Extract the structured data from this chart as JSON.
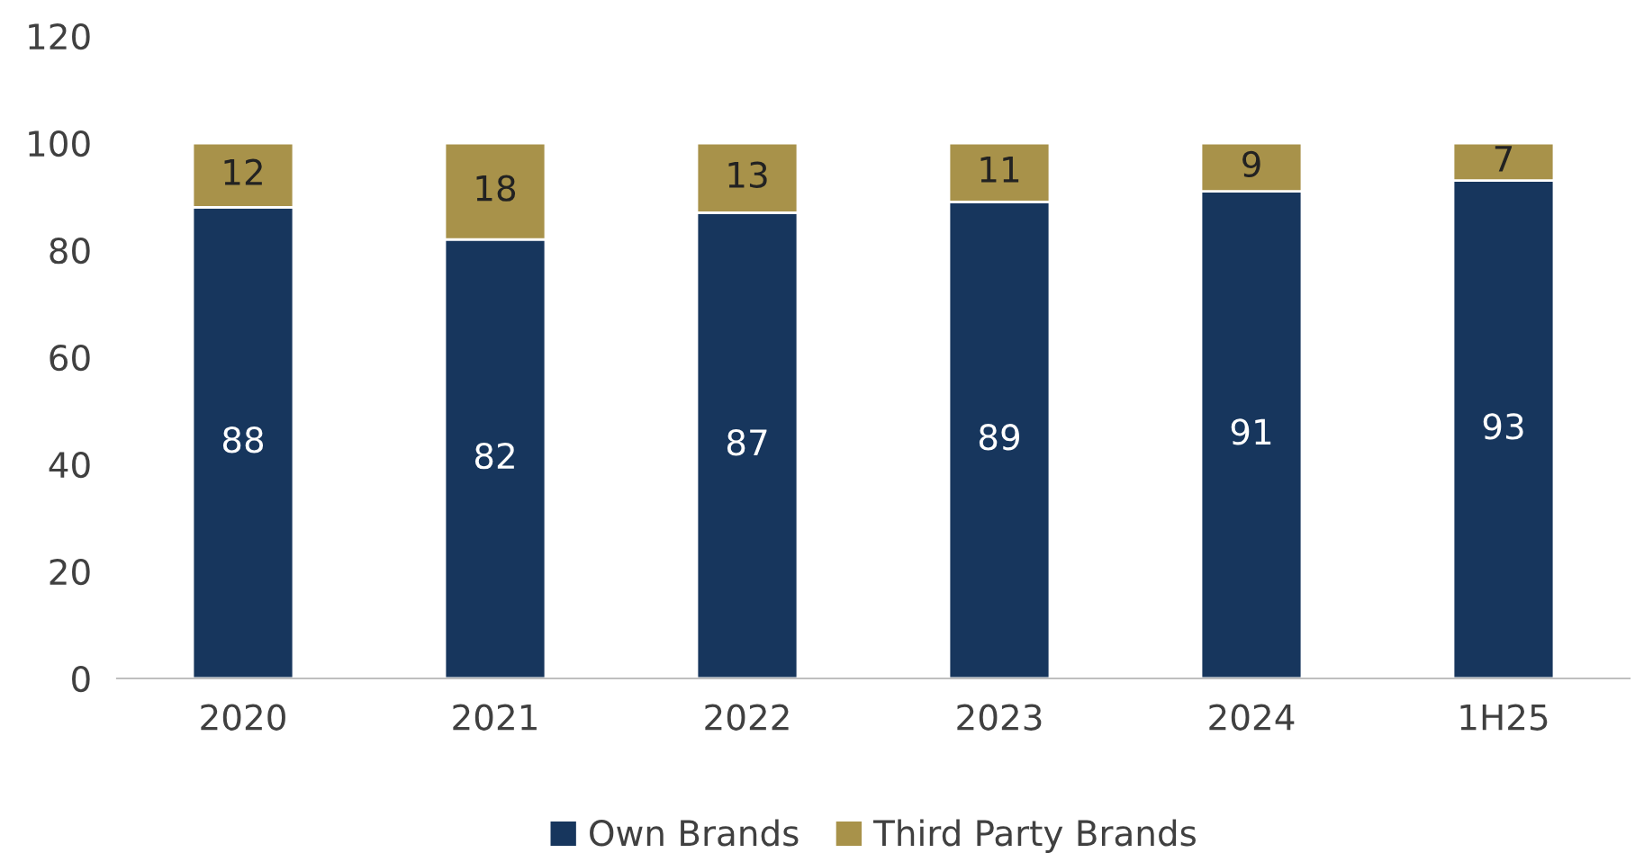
{
  "chart_data": {
    "type": "bar",
    "stacked": true,
    "categories": [
      "2020",
      "2021",
      "2022",
      "2023",
      "2024",
      "1H25"
    ],
    "series": [
      {
        "name": "Own Brands",
        "color": "#17365d",
        "values": [
          88,
          82,
          87,
          89,
          91,
          93
        ]
      },
      {
        "name": "Third Party Brands",
        "color": "#a8924a",
        "values": [
          12,
          18,
          13,
          11,
          9,
          7
        ]
      }
    ],
    "ylim": [
      0,
      120
    ],
    "yticks": [
      0,
      20,
      40,
      60,
      80,
      100,
      120
    ],
    "data_labels": true,
    "grid": false,
    "legend": "bottom"
  }
}
